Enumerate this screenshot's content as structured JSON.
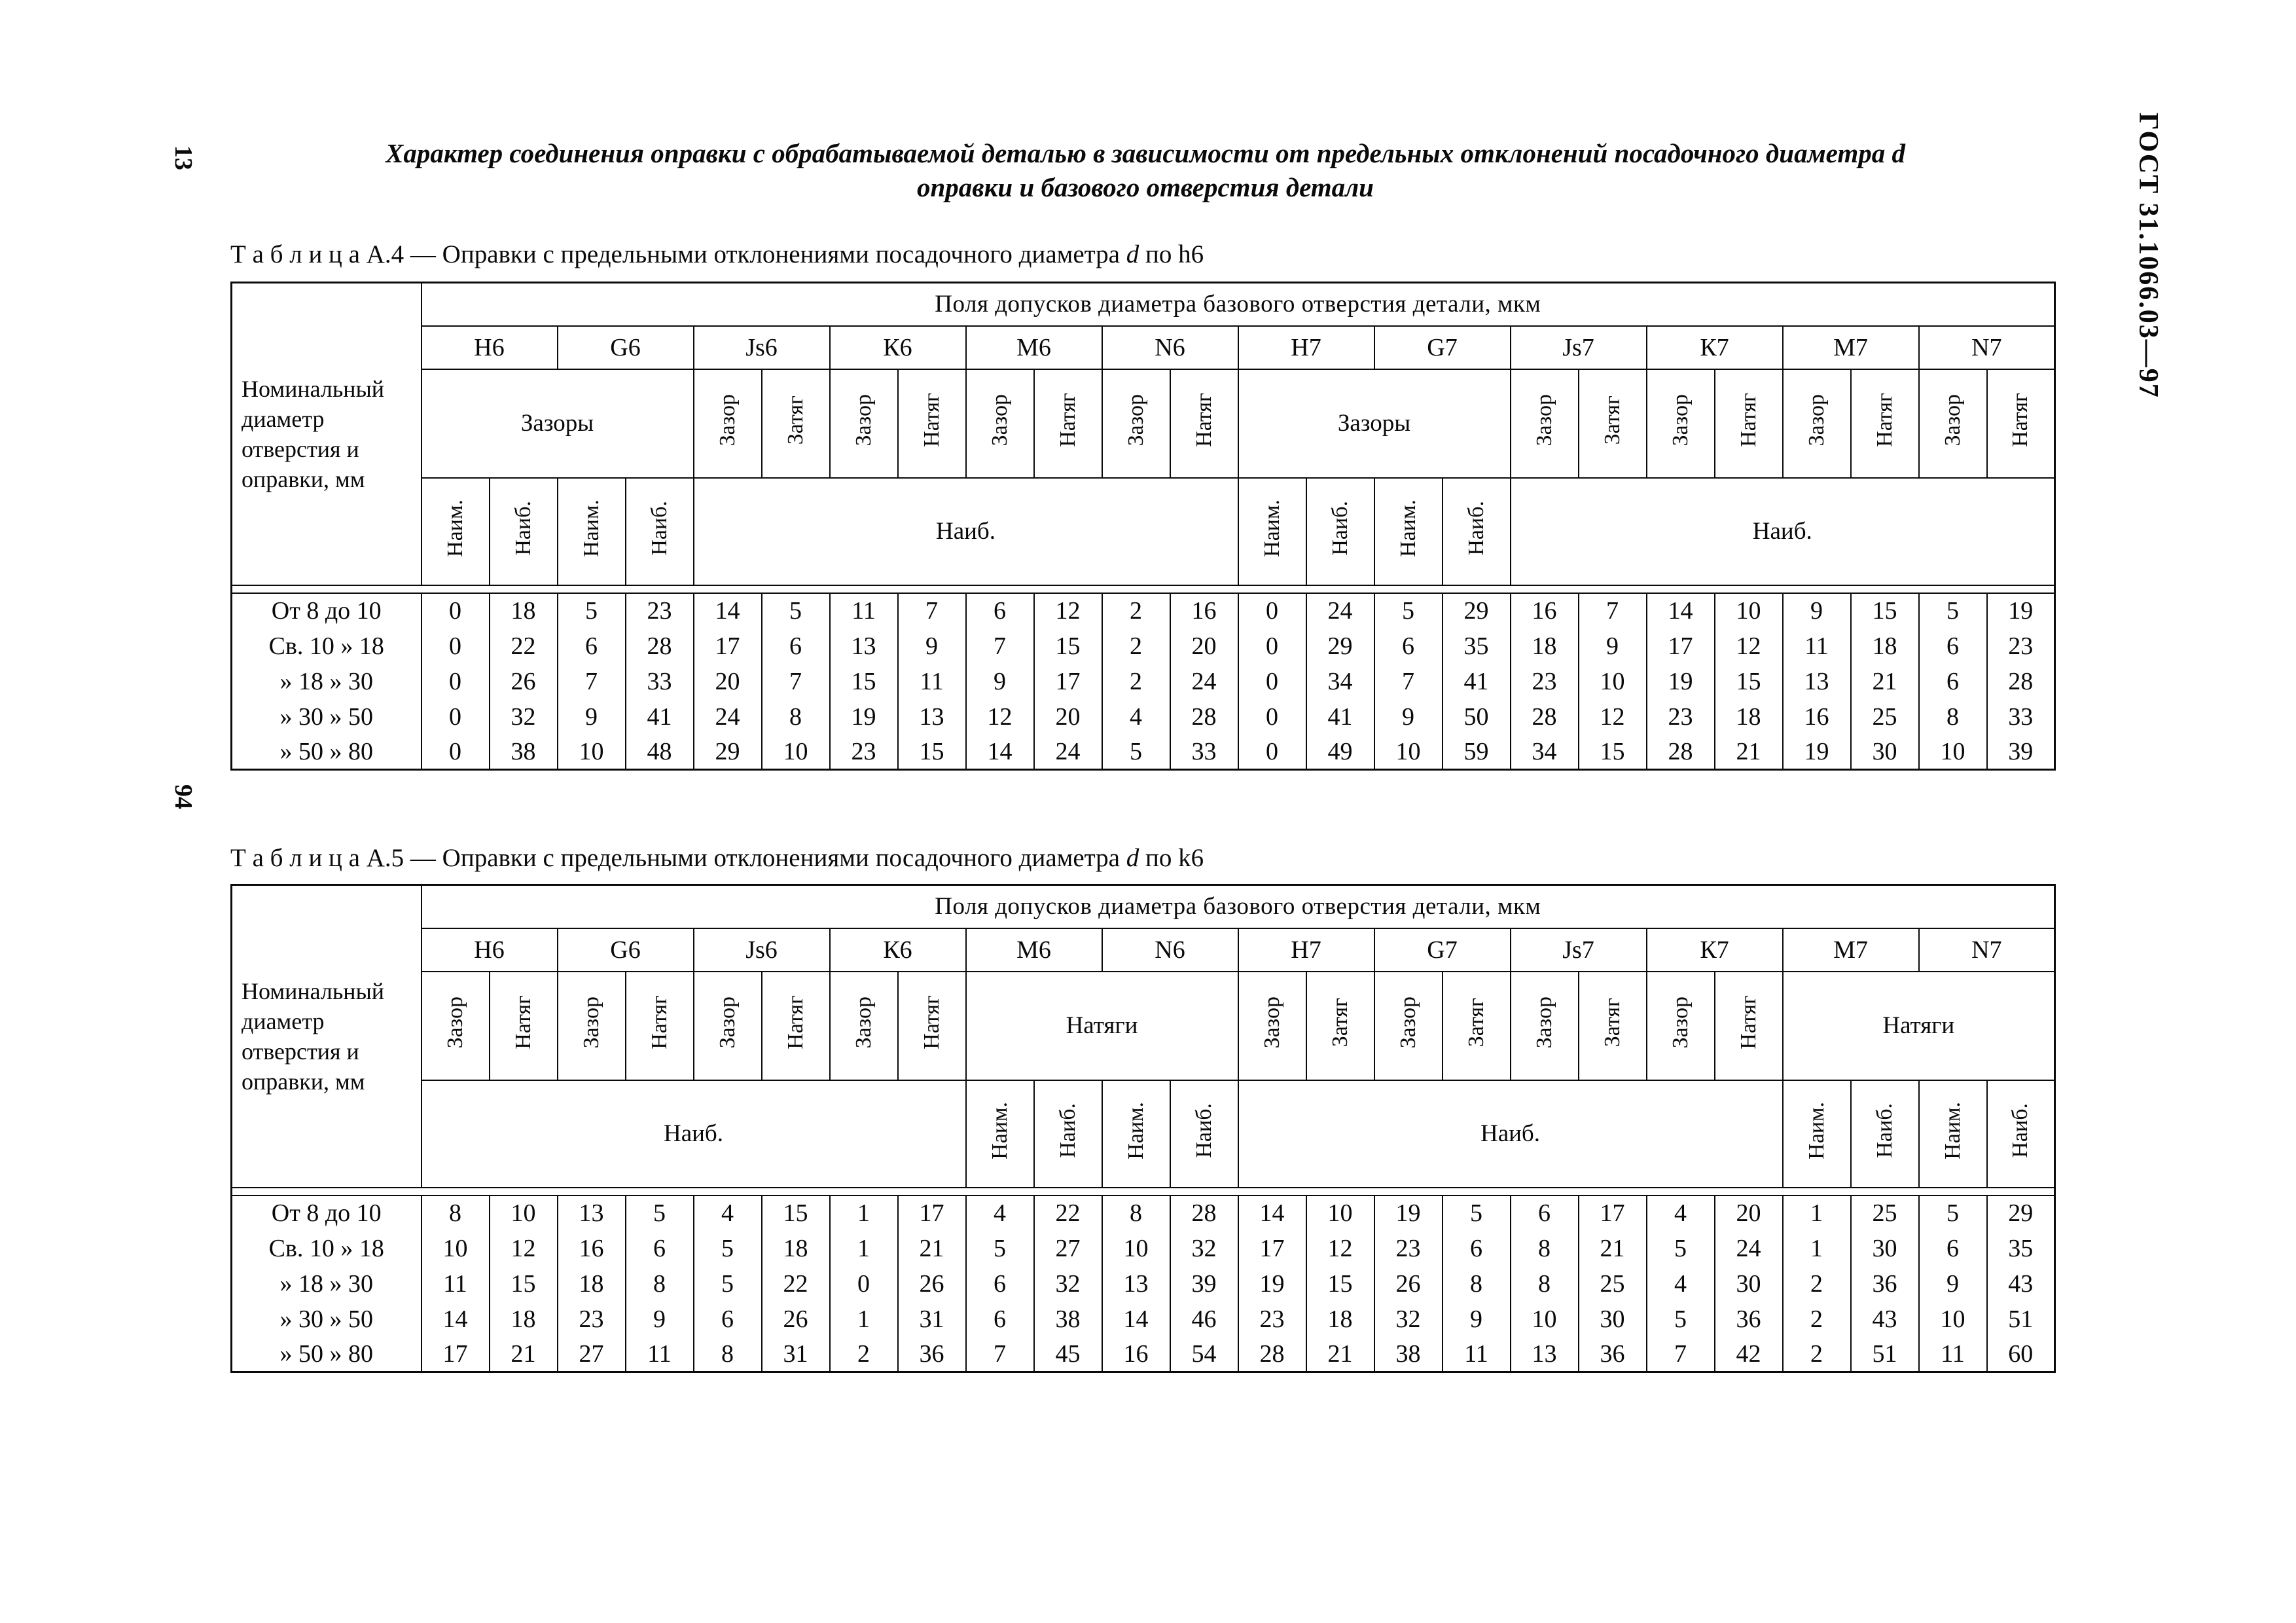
{
  "page": {
    "corner_page_number": "13",
    "margin_page_number": "94",
    "standard_reference": "ГОСТ 31.1066.03—97",
    "title_line1": "Характер соединения оправки с обрабатываемой деталью в зависимости от предельных отклонений посадочного диаметра d",
    "title_line2": "оправки и базового отверстия детали"
  },
  "common": {
    "corner_header": "Номинальный диаметр отверстия и оправки, мм",
    "top_header": "Поля допусков диаметра базового отверстия детали, мкм"
  },
  "table_a4": {
    "caption_label": "Т а б л и ц а  А.4 — ",
    "caption_before_d": "Оправки с предельными отклонениями посадочного диаметра ",
    "caption_d": "d",
    "caption_after_d": " по h6",
    "zones_row": [
      {
        "label": "Н6",
        "colspan": 2
      },
      {
        "label": "G6",
        "colspan": 2
      },
      {
        "label": "Js6",
        "colspan": 2
      },
      {
        "label": "К6",
        "colspan": 2
      },
      {
        "label": "М6",
        "colspan": 2
      },
      {
        "label": "N6",
        "colspan": 2
      },
      {
        "label": "Н7",
        "colspan": 2
      },
      {
        "label": "G7",
        "colspan": 2
      },
      {
        "label": "Js7",
        "colspan": 2
      },
      {
        "label": "К7",
        "colspan": 2
      },
      {
        "label": "М7",
        "colspan": 2
      },
      {
        "label": "N7",
        "colspan": 2
      }
    ],
    "fits_row": [
      {
        "label": "Зазоры",
        "colspan": 4
      },
      {
        "label": "Зазор",
        "rot": true
      },
      {
        "label": "Затяг",
        "rot": true
      },
      {
        "label": "Зазор",
        "rot": true
      },
      {
        "label": "Натяг",
        "rot": true
      },
      {
        "label": "Зазор",
        "rot": true
      },
      {
        "label": "Натяг",
        "rot": true
      },
      {
        "label": "Зазор",
        "rot": true
      },
      {
        "label": "Натяг",
        "rot": true
      },
      {
        "label": "Зазоры",
        "colspan": 4
      },
      {
        "label": "Зазор",
        "rot": true
      },
      {
        "label": "Затяг",
        "rot": true
      },
      {
        "label": "Зазор",
        "rot": true
      },
      {
        "label": "Натяг",
        "rot": true
      },
      {
        "label": "Зазор",
        "rot": true
      },
      {
        "label": "Натяг",
        "rot": true
      },
      {
        "label": "Зазор",
        "rot": true
      },
      {
        "label": "Натяг",
        "rot": true
      }
    ],
    "minmax_row": [
      {
        "label": "Наим.",
        "rot": true
      },
      {
        "label": "Наиб.",
        "rot": true
      },
      {
        "label": "Наим.",
        "rot": true
      },
      {
        "label": "Наиб.",
        "rot": true
      },
      {
        "label": "Наиб.",
        "colspan": 8
      },
      {
        "label": "Наим.",
        "rot": true
      },
      {
        "label": "Наиб.",
        "rot": true
      },
      {
        "label": "Наим.",
        "rot": true
      },
      {
        "label": "Наиб.",
        "rot": true
      },
      {
        "label": "Наиб.",
        "colspan": 8
      }
    ],
    "rows": [
      {
        "label": "От 8 до 10",
        "values": [
          0,
          18,
          5,
          23,
          14,
          5,
          11,
          7,
          6,
          12,
          2,
          16,
          0,
          24,
          5,
          29,
          16,
          7,
          14,
          10,
          9,
          15,
          5,
          19
        ]
      },
      {
        "label": "Св. 10 » 18",
        "values": [
          0,
          22,
          6,
          28,
          17,
          6,
          13,
          9,
          7,
          15,
          2,
          20,
          0,
          29,
          6,
          35,
          18,
          9,
          17,
          12,
          11,
          18,
          6,
          23
        ]
      },
      {
        "label": "» 18 » 30",
        "values": [
          0,
          26,
          7,
          33,
          20,
          7,
          15,
          11,
          9,
          17,
          2,
          24,
          0,
          34,
          7,
          41,
          23,
          10,
          19,
          15,
          13,
          21,
          6,
          28
        ]
      },
      {
        "label": "» 30 » 50",
        "values": [
          0,
          32,
          9,
          41,
          24,
          8,
          19,
          13,
          12,
          20,
          4,
          28,
          0,
          41,
          9,
          50,
          28,
          12,
          23,
          18,
          16,
          25,
          8,
          33
        ]
      },
      {
        "label": "» 50 » 80",
        "values": [
          0,
          38,
          10,
          48,
          29,
          10,
          23,
          15,
          14,
          24,
          5,
          33,
          0,
          49,
          10,
          59,
          34,
          15,
          28,
          21,
          19,
          30,
          10,
          39
        ]
      }
    ]
  },
  "table_a5": {
    "caption_label": "Т а б л и ц а  А.5 — ",
    "caption_before_d": "Оправки с предельными отклонениями посадочного диаметра ",
    "caption_d": "d",
    "caption_after_d": " по k6",
    "zones_row": [
      {
        "label": "Н6",
        "colspan": 2
      },
      {
        "label": "G6",
        "colspan": 2
      },
      {
        "label": "Js6",
        "colspan": 2
      },
      {
        "label": "К6",
        "colspan": 2
      },
      {
        "label": "М6",
        "colspan": 2
      },
      {
        "label": "N6",
        "colspan": 2
      },
      {
        "label": "Н7",
        "colspan": 2
      },
      {
        "label": "G7",
        "colspan": 2
      },
      {
        "label": "Js7",
        "colspan": 2
      },
      {
        "label": "К7",
        "colspan": 2
      },
      {
        "label": "М7",
        "colspan": 2
      },
      {
        "label": "N7",
        "colspan": 2
      }
    ],
    "fits_row": [
      {
        "label": "Зазор",
        "rot": true
      },
      {
        "label": "Натяг",
        "rot": true
      },
      {
        "label": "Зазор",
        "rot": true
      },
      {
        "label": "Натяг",
        "rot": true
      },
      {
        "label": "Зазор",
        "rot": true
      },
      {
        "label": "Натяг",
        "rot": true
      },
      {
        "label": "Зазор",
        "rot": true
      },
      {
        "label": "Натяг",
        "rot": true
      },
      {
        "label": "Натяги",
        "colspan": 4
      },
      {
        "label": "Зазор",
        "rot": true
      },
      {
        "label": "Затяг",
        "rot": true
      },
      {
        "label": "Зазор",
        "rot": true
      },
      {
        "label": "Затяг",
        "rot": true
      },
      {
        "label": "Зазор",
        "rot": true
      },
      {
        "label": "Затяг",
        "rot": true
      },
      {
        "label": "Зазор",
        "rot": true
      },
      {
        "label": "Натяг",
        "rot": true
      },
      {
        "label": "Натяги",
        "colspan": 4
      }
    ],
    "minmax_row": [
      {
        "label": "Наиб.",
        "colspan": 8
      },
      {
        "label": "Наим.",
        "rot": true
      },
      {
        "label": "Наиб.",
        "rot": true
      },
      {
        "label": "Наим.",
        "rot": true
      },
      {
        "label": "Наиб.",
        "rot": true
      },
      {
        "label": "Наиб.",
        "colspan": 8
      },
      {
        "label": "Наим.",
        "rot": true
      },
      {
        "label": "Наиб.",
        "rot": true
      },
      {
        "label": "Наим.",
        "rot": true
      },
      {
        "label": "Наиб.",
        "rot": true
      }
    ],
    "rows": [
      {
        "label": "От 8 до 10",
        "values": [
          8,
          10,
          13,
          5,
          4,
          15,
          1,
          17,
          4,
          22,
          8,
          28,
          14,
          10,
          19,
          5,
          6,
          17,
          4,
          20,
          1,
          25,
          5,
          29
        ]
      },
      {
        "label": "Св. 10 » 18",
        "values": [
          10,
          12,
          16,
          6,
          5,
          18,
          1,
          21,
          5,
          27,
          10,
          32,
          17,
          12,
          23,
          6,
          8,
          21,
          5,
          24,
          1,
          30,
          6,
          35
        ]
      },
      {
        "label": "» 18 » 30",
        "values": [
          11,
          15,
          18,
          8,
          5,
          22,
          0,
          26,
          6,
          32,
          13,
          39,
          19,
          15,
          26,
          8,
          8,
          25,
          4,
          30,
          2,
          36,
          9,
          43
        ]
      },
      {
        "label": "» 30 » 50",
        "values": [
          14,
          18,
          23,
          9,
          6,
          26,
          1,
          31,
          6,
          38,
          14,
          46,
          23,
          18,
          32,
          9,
          10,
          30,
          5,
          36,
          2,
          43,
          10,
          51
        ]
      },
      {
        "label": "» 50 » 80",
        "values": [
          17,
          21,
          27,
          11,
          8,
          31,
          2,
          36,
          7,
          45,
          16,
          54,
          28,
          21,
          38,
          11,
          13,
          36,
          7,
          42,
          2,
          51,
          11,
          60
        ]
      }
    ]
  }
}
